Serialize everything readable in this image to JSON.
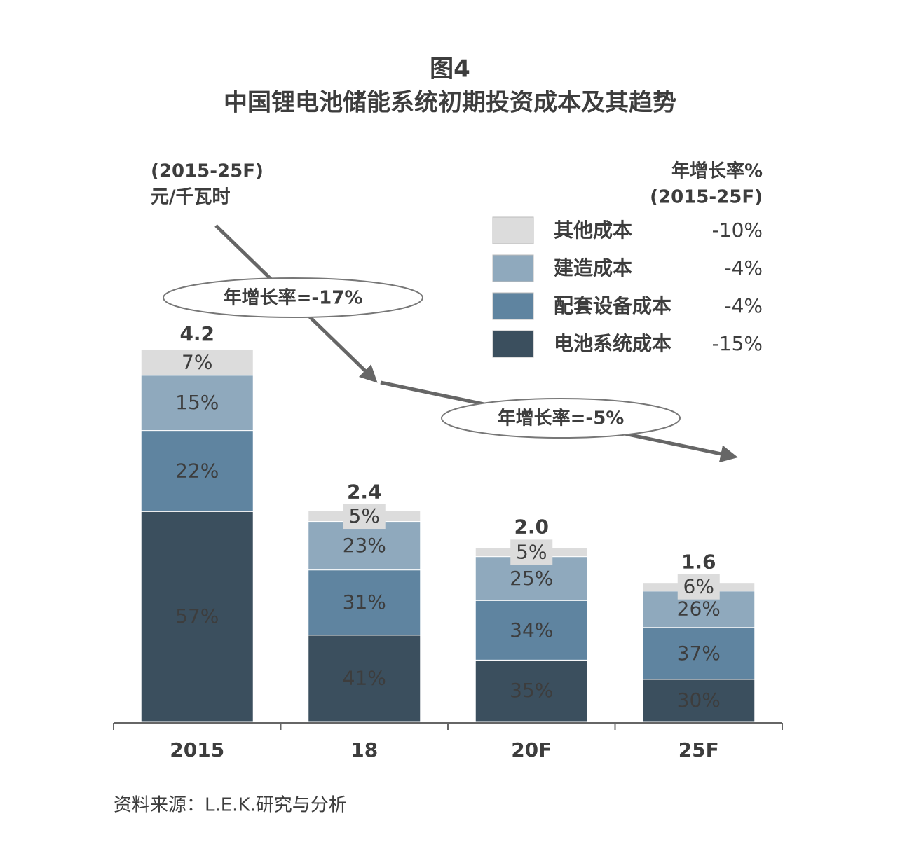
{
  "chart_data": {
    "type": "bar",
    "title": "图4",
    "subtitle": "中国锂电池储能系统初期投资成本及其趋势",
    "unit_label": [
      "(2015-25F)",
      "元/千瓦时"
    ],
    "legend_title": [
      "年增长率%",
      "(2015-25F)"
    ],
    "annotations": [
      "年增长率=-17%",
      "年增长率=-5%"
    ],
    "source": "资料来源：L.E.K.研究与分析",
    "categories": [
      "2015",
      "18",
      "20F",
      "25F"
    ],
    "totals": [
      4.2,
      2.4,
      2.0,
      1.6
    ],
    "total_labels": [
      "4.2",
      "2.4",
      "2.0",
      "1.6"
    ],
    "series": [
      {
        "name": "电池系统成本",
        "growth": "-15%",
        "color": "#3b4f5e",
        "values": [
          57,
          41,
          35,
          30
        ],
        "value_labels": [
          "57%",
          "41%",
          "35%",
          "30%"
        ]
      },
      {
        "name": "配套设备成本",
        "growth": "-4%",
        "color": "#5f84a0",
        "values": [
          22,
          31,
          34,
          37
        ],
        "value_labels": [
          "22%",
          "31%",
          "34%",
          "37%"
        ]
      },
      {
        "name": "建造成本",
        "growth": "-4%",
        "color": "#8fa9bd",
        "values": [
          15,
          23,
          25,
          26
        ],
        "value_labels": [
          "15%",
          "23%",
          "25%",
          "26%"
        ]
      },
      {
        "name": "其他成本",
        "growth": "-10%",
        "color": "#dcdcdc",
        "values": [
          7,
          5,
          5,
          6
        ],
        "value_labels": [
          "7%",
          "5%",
          "5%",
          "6%"
        ]
      }
    ]
  }
}
